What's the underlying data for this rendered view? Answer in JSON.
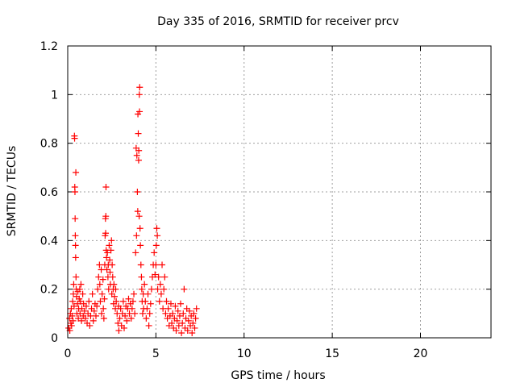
{
  "chart_data": {
    "type": "scatter",
    "title": "Day 335 of 2016, SRMTID for receiver prcv",
    "xlabel": "GPS time / hours",
    "ylabel": "SRMTID / TECUs",
    "xlim": [
      0,
      24
    ],
    "ylim": [
      0,
      1.2
    ],
    "xticks": [
      0,
      5,
      10,
      15,
      20
    ],
    "xtick_labels": [
      "0",
      "5",
      "10",
      "15",
      "20"
    ],
    "yticks": [
      0,
      0.2,
      0.4,
      0.6,
      0.8,
      1.0,
      1.2
    ],
    "ytick_labels": [
      "0",
      "0.2",
      "0.4",
      "0.6",
      "0.8",
      "1",
      "1.2"
    ],
    "grid": true,
    "marker": "plus",
    "series": [
      {
        "name": "SRMTID",
        "color": "#ff0000",
        "points": [
          [
            0.05,
            0.04
          ],
          [
            0.1,
            0.08
          ],
          [
            0.12,
            0.03
          ],
          [
            0.15,
            0.1
          ],
          [
            0.18,
            0.06
          ],
          [
            0.2,
            0.12
          ],
          [
            0.22,
            0.05
          ],
          [
            0.25,
            0.09
          ],
          [
            0.28,
            0.15
          ],
          [
            0.3,
            0.07
          ],
          [
            0.32,
            0.18
          ],
          [
            0.34,
            0.22
          ],
          [
            0.36,
            0.13
          ],
          [
            0.38,
            0.83
          ],
          [
            0.39,
            0.82
          ],
          [
            0.4,
            0.62
          ],
          [
            0.41,
            0.6
          ],
          [
            0.42,
            0.49
          ],
          [
            0.43,
            0.42
          ],
          [
            0.44,
            0.38
          ],
          [
            0.45,
            0.33
          ],
          [
            0.46,
            0.68
          ],
          [
            0.47,
            0.25
          ],
          [
            0.48,
            0.2
          ],
          [
            0.5,
            0.17
          ],
          [
            0.52,
            0.1
          ],
          [
            0.55,
            0.14
          ],
          [
            0.58,
            0.19
          ],
          [
            0.6,
            0.08
          ],
          [
            0.62,
            0.12
          ],
          [
            0.65,
            0.16
          ],
          [
            0.68,
            0.2
          ],
          [
            0.7,
            0.1
          ],
          [
            0.72,
            0.15
          ],
          [
            0.75,
            0.22
          ],
          [
            0.78,
            0.07
          ],
          [
            0.8,
            0.12
          ],
          [
            0.85,
            0.18
          ],
          [
            0.88,
            0.09
          ],
          [
            0.9,
            0.14
          ],
          [
            0.95,
            0.11
          ],
          [
            1.0,
            0.08
          ],
          [
            1.05,
            0.13
          ],
          [
            1.1,
            0.06
          ],
          [
            1.15,
            0.1
          ],
          [
            1.2,
            0.15
          ],
          [
            1.25,
            0.05
          ],
          [
            1.3,
            0.09
          ],
          [
            1.35,
            0.12
          ],
          [
            1.4,
            0.18
          ],
          [
            1.45,
            0.07
          ],
          [
            1.5,
            0.11
          ],
          [
            1.55,
            0.14
          ],
          [
            1.6,
            0.09
          ],
          [
            1.65,
            0.13
          ],
          [
            1.7,
            0.2
          ],
          [
            1.75,
            0.25
          ],
          [
            1.8,
            0.3
          ],
          [
            1.82,
            0.22
          ],
          [
            1.85,
            0.15
          ],
          [
            1.9,
            0.28
          ],
          [
            1.92,
            0.1
          ],
          [
            1.95,
            0.18
          ],
          [
            2.0,
            0.24
          ],
          [
            2.02,
            0.12
          ],
          [
            2.05,
            0.08
          ],
          [
            2.08,
            0.16
          ],
          [
            2.1,
            0.3
          ],
          [
            2.12,
            0.42
          ],
          [
            2.14,
            0.49
          ],
          [
            2.15,
            0.43
          ],
          [
            2.16,
            0.5
          ],
          [
            2.17,
            0.62
          ],
          [
            2.18,
            0.36
          ],
          [
            2.2,
            0.33
          ],
          [
            2.22,
            0.28
          ],
          [
            2.25,
            0.35
          ],
          [
            2.28,
            0.25
          ],
          [
            2.3,
            0.3
          ],
          [
            2.32,
            0.2
          ],
          [
            2.35,
            0.38
          ],
          [
            2.38,
            0.32
          ],
          [
            2.4,
            0.27
          ],
          [
            2.42,
            0.22
          ],
          [
            2.45,
            0.36
          ],
          [
            2.48,
            0.4
          ],
          [
            2.5,
            0.18
          ],
          [
            2.52,
            0.3
          ],
          [
            2.55,
            0.25
          ],
          [
            2.58,
            0.2
          ],
          [
            2.6,
            0.14
          ],
          [
            2.62,
            0.22
          ],
          [
            2.65,
            0.17
          ],
          [
            2.7,
            0.12
          ],
          [
            2.72,
            0.2
          ],
          [
            2.75,
            0.15
          ],
          [
            2.8,
            0.1
          ],
          [
            2.85,
            0.06
          ],
          [
            2.88,
            0.13
          ],
          [
            2.9,
            0.03
          ],
          [
            2.95,
            0.08
          ],
          [
            3.0,
            0.12
          ],
          [
            3.05,
            0.05
          ],
          [
            3.1,
            0.1
          ],
          [
            3.15,
            0.15
          ],
          [
            3.2,
            0.04
          ],
          [
            3.25,
            0.09
          ],
          [
            3.3,
            0.13
          ],
          [
            3.35,
            0.07
          ],
          [
            3.4,
            0.12
          ],
          [
            3.45,
            0.16
          ],
          [
            3.5,
            0.1
          ],
          [
            3.55,
            0.14
          ],
          [
            3.6,
            0.08
          ],
          [
            3.65,
            0.12
          ],
          [
            3.7,
            0.15
          ],
          [
            3.75,
            0.18
          ],
          [
            3.8,
            0.1
          ],
          [
            3.85,
            0.35
          ],
          [
            3.88,
            0.78
          ],
          [
            3.9,
            0.42
          ],
          [
            3.92,
            0.75
          ],
          [
            3.95,
            0.6
          ],
          [
            3.97,
            0.52
          ],
          [
            3.98,
            0.92
          ],
          [
            4.0,
            0.84
          ],
          [
            4.02,
            0.73
          ],
          [
            4.03,
            0.77
          ],
          [
            4.05,
            0.5
          ],
          [
            4.06,
            1.0
          ],
          [
            4.07,
            0.93
          ],
          [
            4.08,
            1.03
          ],
          [
            4.1,
            0.45
          ],
          [
            4.12,
            0.38
          ],
          [
            4.15,
            0.3
          ],
          [
            4.18,
            0.25
          ],
          [
            4.2,
            0.2
          ],
          [
            4.22,
            0.15
          ],
          [
            4.25,
            0.1
          ],
          [
            4.28,
            0.18
          ],
          [
            4.3,
            0.12
          ],
          [
            4.35,
            0.22
          ],
          [
            4.4,
            0.15
          ],
          [
            4.45,
            0.08
          ],
          [
            4.5,
            0.12
          ],
          [
            4.55,
            0.18
          ],
          [
            4.6,
            0.05
          ],
          [
            4.65,
            0.1
          ],
          [
            4.7,
            0.14
          ],
          [
            4.75,
            0.2
          ],
          [
            4.8,
            0.25
          ],
          [
            4.85,
            0.3
          ],
          [
            4.9,
            0.35
          ],
          [
            4.95,
            0.26
          ],
          [
            5.0,
            0.3
          ],
          [
            5.02,
            0.38
          ],
          [
            5.05,
            0.45
          ],
          [
            5.08,
            0.42
          ],
          [
            5.1,
            0.2
          ],
          [
            5.15,
            0.25
          ],
          [
            5.2,
            0.15
          ],
          [
            5.25,
            0.22
          ],
          [
            5.3,
            0.18
          ],
          [
            5.35,
            0.3
          ],
          [
            5.4,
            0.12
          ],
          [
            5.45,
            0.2
          ],
          [
            5.5,
            0.25
          ],
          [
            5.55,
            0.1
          ],
          [
            5.6,
            0.15
          ],
          [
            5.65,
            0.08
          ],
          [
            5.7,
            0.12
          ],
          [
            5.75,
            0.05
          ],
          [
            5.8,
            0.09
          ],
          [
            5.85,
            0.14
          ],
          [
            5.9,
            0.06
          ],
          [
            5.95,
            0.1
          ],
          [
            6.0,
            0.04
          ],
          [
            6.05,
            0.08
          ],
          [
            6.1,
            0.13
          ],
          [
            6.15,
            0.03
          ],
          [
            6.2,
            0.07
          ],
          [
            6.25,
            0.11
          ],
          [
            6.3,
            0.05
          ],
          [
            6.35,
            0.09
          ],
          [
            6.4,
            0.14
          ],
          [
            6.45,
            0.02
          ],
          [
            6.5,
            0.06
          ],
          [
            6.55,
            0.1
          ],
          [
            6.6,
            0.2
          ],
          [
            6.65,
            0.04
          ],
          [
            6.7,
            0.08
          ],
          [
            6.75,
            0.12
          ],
          [
            6.8,
            0.03
          ],
          [
            6.85,
            0.07
          ],
          [
            6.9,
            0.11
          ],
          [
            6.95,
            0.05
          ],
          [
            7.0,
            0.09
          ],
          [
            7.05,
            0.02
          ],
          [
            7.1,
            0.06
          ],
          [
            7.15,
            0.1
          ],
          [
            7.2,
            0.04
          ],
          [
            7.25,
            0.08
          ],
          [
            7.3,
            0.12
          ]
        ]
      }
    ]
  }
}
